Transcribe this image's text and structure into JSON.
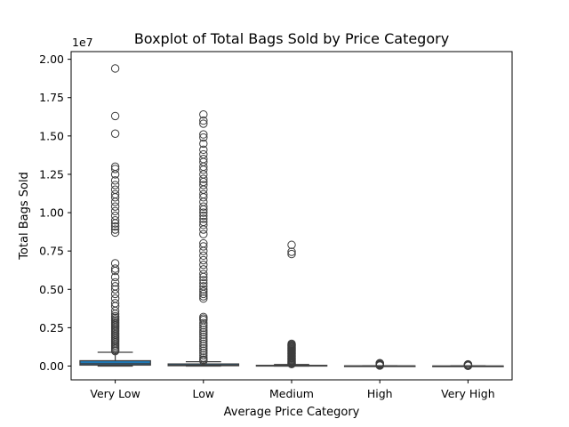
{
  "chart_data": {
    "type": "boxplot",
    "title": "Boxplot of Total Bags Sold by Price Category",
    "xlabel": "Average Price Category",
    "ylabel": "Total Bags Sold",
    "y_offset_label": "1e7",
    "ylim": [
      -900000,
      20500000
    ],
    "yticks": [
      0,
      2500000,
      5000000,
      7500000,
      10000000,
      12500000,
      15000000,
      17500000,
      20000000
    ],
    "ytick_labels": [
      "0.00",
      "0.25",
      "0.50",
      "0.75",
      "1.00",
      "1.25",
      "1.50",
      "1.75",
      "2.00"
    ],
    "grid": false,
    "categories": [
      "Very Low",
      "Low",
      "Medium",
      "High",
      "Very High"
    ],
    "box_colors": [
      "#1f77b4",
      "#1f77b4",
      "#1f77b4",
      "#1f77b4",
      "#1f77b4"
    ],
    "outline_color": "#3d3d3d",
    "boxes": [
      {
        "category": "Very Low",
        "q1": 60000,
        "median": 150000,
        "q3": 350000,
        "whisker_low": 0,
        "whisker_high": 900000,
        "outliers": [
          19400000,
          16300000,
          15150000,
          13000000,
          12850000,
          12500000,
          12100000,
          11800000,
          11500000,
          11200000,
          11000000,
          10700000,
          10400000,
          10100000,
          9800000,
          9500000,
          9300000,
          9100000,
          8900000,
          8700000,
          6700000,
          6350000,
          6200000,
          5800000,
          5450000,
          5200000,
          5000000,
          4700000,
          4400000,
          4100000,
          3900000,
          3600000,
          3400000,
          3250000,
          3150000,
          3050000,
          2950000,
          2850000,
          2750000,
          2650000,
          2550000,
          2450000,
          2350000,
          2250000,
          2150000,
          2050000,
          1950000,
          1850000,
          1750000,
          1650000,
          1550000,
          1450000,
          1350000,
          1250000,
          1150000,
          1050000,
          975000
        ]
      },
      {
        "category": "Low",
        "q1": 20000,
        "median": 60000,
        "q3": 140000,
        "whisker_low": 0,
        "whisker_high": 280000,
        "outliers": [
          16400000,
          16000000,
          15800000,
          15100000,
          14900000,
          14500000,
          14100000,
          13800000,
          13500000,
          13300000,
          13000000,
          12800000,
          12500000,
          12200000,
          12000000,
          11800000,
          11500000,
          11200000,
          11000000,
          10700000,
          10400000,
          10200000,
          10000000,
          9800000,
          9600000,
          9400000,
          9200000,
          8900000,
          8600000,
          8000000,
          7800000,
          7500000,
          7200000,
          6900000,
          6600000,
          6300000,
          6000000,
          5800000,
          5600000,
          5400000,
          5200000,
          5000000,
          4850000,
          4700000,
          4550000,
          4400000,
          3200000,
          3100000,
          3000000,
          2800000,
          2650000,
          2500000,
          2350000,
          2200000,
          2050000,
          1900000,
          1750000,
          1600000,
          1450000,
          1300000,
          1150000,
          1000000,
          850000,
          700000,
          550000,
          420000,
          340000
        ]
      },
      {
        "category": "Medium",
        "q1": 8000,
        "median": 20000,
        "q3": 45000,
        "whisker_low": 0,
        "whisker_high": 100000,
        "outliers": [
          7900000,
          7450000,
          7300000,
          1450000,
          1400000,
          1350000,
          1300000,
          1250000,
          1200000,
          1150000,
          1100000,
          1050000,
          1000000,
          950000,
          900000,
          850000,
          800000,
          750000,
          700000,
          650000,
          600000,
          550000,
          500000,
          450000,
          400000,
          350000,
          300000,
          250000,
          200000,
          160000,
          130000
        ]
      },
      {
        "category": "High",
        "q1": 2000,
        "median": 5000,
        "q3": 12000,
        "whisker_low": 0,
        "whisker_high": 25000,
        "outliers": [
          190000,
          170000,
          150000,
          130000,
          110000,
          95000,
          80000,
          65000,
          50000,
          38000,
          30000
        ]
      },
      {
        "category": "Very High",
        "q1": 1000,
        "median": 2500,
        "q3": 6000,
        "whisker_low": 0,
        "whisker_high": 12000,
        "outliers": [
          110000,
          95000,
          80000,
          65000,
          50000,
          38000,
          28000,
          20000,
          15000
        ]
      }
    ]
  }
}
